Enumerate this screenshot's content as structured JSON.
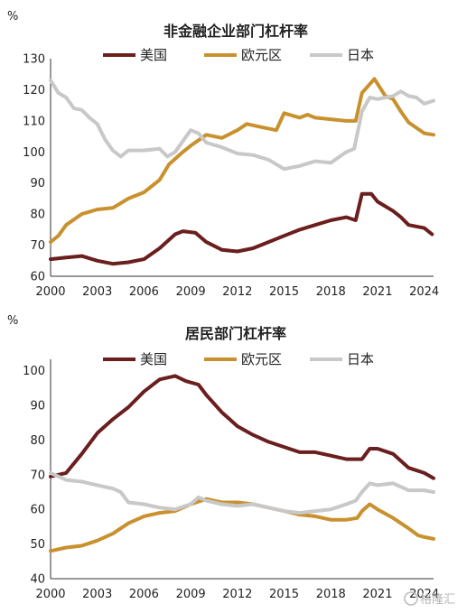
{
  "chart_data": [
    {
      "type": "line",
      "title": "非金融企业部门杠杆率",
      "unit": "%",
      "ylim": [
        60,
        130
      ],
      "yticks": [
        60,
        70,
        80,
        90,
        100,
        110,
        120,
        130
      ],
      "xlim": [
        2000,
        2024.6
      ],
      "xticks": [
        2000,
        2003,
        2006,
        2009,
        2012,
        2015,
        2018,
        2021,
        2024
      ],
      "grid": false,
      "legend_position": "top",
      "series": [
        {
          "name": "美国",
          "color": "#6b1e1e",
          "points": [
            [
              2000,
              65.5
            ],
            [
              2001,
              66
            ],
            [
              2002,
              66.5
            ],
            [
              2003,
              65
            ],
            [
              2004,
              64
            ],
            [
              2005,
              64.5
            ],
            [
              2006,
              65.5
            ],
            [
              2007,
              69
            ],
            [
              2008,
              73.5
            ],
            [
              2008.5,
              74.5
            ],
            [
              2009.3,
              74
            ],
            [
              2010,
              71
            ],
            [
              2011,
              68.5
            ],
            [
              2012,
              68
            ],
            [
              2013,
              69
            ],
            [
              2014,
              71
            ],
            [
              2015,
              73
            ],
            [
              2016,
              75
            ],
            [
              2017,
              76.5
            ],
            [
              2018,
              78
            ],
            [
              2019,
              79
            ],
            [
              2019.6,
              78
            ],
            [
              2020,
              86.5
            ],
            [
              2020.6,
              86.5
            ],
            [
              2021,
              84
            ],
            [
              2022,
              81
            ],
            [
              2022.5,
              79
            ],
            [
              2023,
              76.5
            ],
            [
              2024,
              75.5
            ],
            [
              2024.5,
              73.5
            ]
          ]
        },
        {
          "name": "欧元区",
          "color": "#c9912e",
          "points": [
            [
              2000,
              71
            ],
            [
              2000.5,
              73
            ],
            [
              2001,
              76.5
            ],
            [
              2002,
              80
            ],
            [
              2003,
              81.5
            ],
            [
              2004,
              82
            ],
            [
              2005,
              85
            ],
            [
              2006,
              87
            ],
            [
              2007,
              91
            ],
            [
              2007.6,
              96
            ],
            [
              2008.5,
              100
            ],
            [
              2009,
              102
            ],
            [
              2010,
              105.5
            ],
            [
              2011,
              104.5
            ],
            [
              2012,
              107
            ],
            [
              2012.6,
              109
            ],
            [
              2013.5,
              108
            ],
            [
              2014.5,
              107
            ],
            [
              2015,
              112.5
            ],
            [
              2016,
              111
            ],
            [
              2016.5,
              112
            ],
            [
              2017,
              111
            ],
            [
              2018,
              110.5
            ],
            [
              2019,
              110
            ],
            [
              2019.6,
              110
            ],
            [
              2020,
              119
            ],
            [
              2020.8,
              123.5
            ],
            [
              2021.5,
              118
            ],
            [
              2022,
              117
            ],
            [
              2022.5,
              113
            ],
            [
              2023,
              109.5
            ],
            [
              2024,
              106
            ],
            [
              2024.6,
              105.5
            ]
          ]
        },
        {
          "name": "日本",
          "color": "#c8c8c8",
          "points": [
            [
              2000,
              123
            ],
            [
              2000.5,
              119
            ],
            [
              2001,
              117.5
            ],
            [
              2001.5,
              114
            ],
            [
              2002,
              113.5
            ],
            [
              2002.5,
              111
            ],
            [
              2003,
              109
            ],
            [
              2003.5,
              104
            ],
            [
              2004,
              100.5
            ],
            [
              2004.5,
              98.5
            ],
            [
              2005,
              100.5
            ],
            [
              2006,
              100.5
            ],
            [
              2007,
              101
            ],
            [
              2007.5,
              98.5
            ],
            [
              2008,
              100
            ],
            [
              2009,
              107
            ],
            [
              2009.5,
              106
            ],
            [
              2010,
              103
            ],
            [
              2011,
              101.5
            ],
            [
              2012,
              99.5
            ],
            [
              2013,
              99
            ],
            [
              2014,
              97.5
            ],
            [
              2015,
              94.5
            ],
            [
              2016,
              95.5
            ],
            [
              2017,
              97
            ],
            [
              2018,
              96.5
            ],
            [
              2019,
              100
            ],
            [
              2019.5,
              101
            ],
            [
              2020,
              113
            ],
            [
              2020.5,
              117.5
            ],
            [
              2021,
              117
            ],
            [
              2022,
              118
            ],
            [
              2022.5,
              119.5
            ],
            [
              2023,
              118
            ],
            [
              2023.5,
              117.5
            ],
            [
              2024,
              115.5
            ],
            [
              2024.6,
              116.5
            ]
          ]
        }
      ]
    },
    {
      "type": "line",
      "title": "居民部门杠杆率",
      "unit": "%",
      "ylim": [
        40,
        102
      ],
      "yticks": [
        40,
        50,
        60,
        70,
        80,
        90,
        100
      ],
      "xlim": [
        2000,
        2024.6
      ],
      "xticks": [
        2000,
        2003,
        2006,
        2009,
        2012,
        2015,
        2018,
        2021,
        2024
      ],
      "grid": false,
      "legend_position": "top",
      "series": [
        {
          "name": "美国",
          "color": "#6b1e1e",
          "points": [
            [
              2000,
              69.5
            ],
            [
              2001,
              70.5
            ],
            [
              2002,
              76
            ],
            [
              2003,
              82
            ],
            [
              2004,
              86
            ],
            [
              2005,
              89.5
            ],
            [
              2006,
              94
            ],
            [
              2007,
              97.5
            ],
            [
              2008,
              98.5
            ],
            [
              2008.7,
              97
            ],
            [
              2009.5,
              96
            ],
            [
              2010,
              93
            ],
            [
              2011,
              88
            ],
            [
              2012,
              84
            ],
            [
              2013,
              81.5
            ],
            [
              2014,
              79.5
            ],
            [
              2015,
              78
            ],
            [
              2016,
              76.5
            ],
            [
              2017,
              76.5
            ],
            [
              2018,
              75.5
            ],
            [
              2019,
              74.5
            ],
            [
              2020,
              74.5
            ],
            [
              2020.5,
              77.5
            ],
            [
              2021,
              77.5
            ],
            [
              2022,
              76
            ],
            [
              2023,
              72
            ],
            [
              2024,
              70.5
            ],
            [
              2024.6,
              69
            ]
          ]
        },
        {
          "name": "欧元区",
          "color": "#c9912e",
          "points": [
            [
              2000,
              48
            ],
            [
              2001,
              49
            ],
            [
              2002,
              49.5
            ],
            [
              2003,
              51
            ],
            [
              2004,
              53
            ],
            [
              2005,
              56
            ],
            [
              2006,
              58
            ],
            [
              2007,
              59
            ],
            [
              2008,
              59.5
            ],
            [
              2009,
              61.5
            ],
            [
              2010,
              63
            ],
            [
              2011,
              62
            ],
            [
              2012,
              62
            ],
            [
              2013,
              61.5
            ],
            [
              2014,
              60.5
            ],
            [
              2015,
              59.5
            ],
            [
              2016,
              58.5
            ],
            [
              2017,
              58
            ],
            [
              2018,
              57
            ],
            [
              2019,
              57
            ],
            [
              2019.7,
              57.5
            ],
            [
              2020,
              59.5
            ],
            [
              2020.5,
              61.5
            ],
            [
              2021,
              60
            ],
            [
              2022,
              57.5
            ],
            [
              2023,
              54.5
            ],
            [
              2023.6,
              52.5
            ],
            [
              2024,
              52
            ],
            [
              2024.6,
              51.5
            ]
          ]
        },
        {
          "name": "日本",
          "color": "#c8c8c8",
          "points": [
            [
              2000,
              70.5
            ],
            [
              2001,
              68.5
            ],
            [
              2002,
              68
            ],
            [
              2003,
              67
            ],
            [
              2004,
              66
            ],
            [
              2004.5,
              65
            ],
            [
              2005,
              62
            ],
            [
              2006,
              61.5
            ],
            [
              2007,
              60.5
            ],
            [
              2008,
              60
            ],
            [
              2009,
              61.5
            ],
            [
              2009.5,
              63.5
            ],
            [
              2010,
              62.5
            ],
            [
              2011,
              61.5
            ],
            [
              2012,
              61
            ],
            [
              2013,
              61.5
            ],
            [
              2014,
              60.5
            ],
            [
              2015,
              59.5
            ],
            [
              2016,
              59
            ],
            [
              2017,
              59.5
            ],
            [
              2018,
              60
            ],
            [
              2019,
              61.5
            ],
            [
              2019.6,
              62.5
            ],
            [
              2020,
              65
            ],
            [
              2020.5,
              67.5
            ],
            [
              2021,
              67
            ],
            [
              2022,
              67.5
            ],
            [
              2023,
              65.5
            ],
            [
              2024,
              65.5
            ],
            [
              2024.6,
              65
            ]
          ]
        }
      ]
    }
  ],
  "watermark": "格隆汇"
}
